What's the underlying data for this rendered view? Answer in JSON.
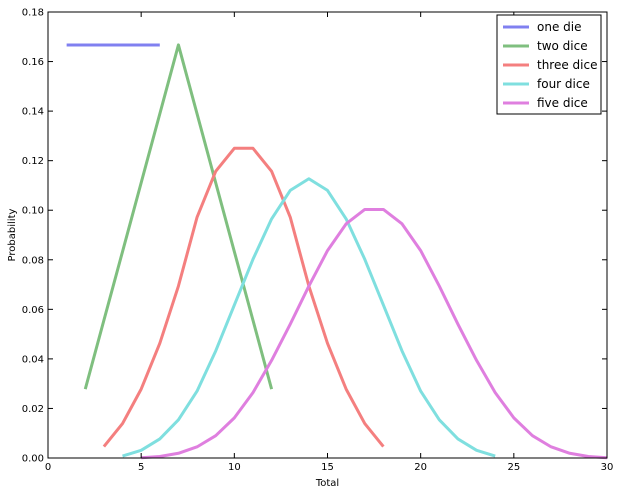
{
  "chart_data": {
    "type": "line",
    "title": "",
    "xlabel": "Total",
    "ylabel": "Probability",
    "xlim": [
      0,
      30
    ],
    "ylim": [
      0,
      0.18
    ],
    "xticks": [
      0,
      5,
      10,
      15,
      20,
      25,
      30
    ],
    "yticks": [
      0.0,
      0.02,
      0.04,
      0.06,
      0.08,
      0.1,
      0.12,
      0.14,
      0.16,
      0.18
    ],
    "grid": false,
    "legend_position": "top-right",
    "series": [
      {
        "name": "one die",
        "color": "#8080f0",
        "x": [
          1,
          2,
          3,
          4,
          5,
          6
        ],
        "y": [
          0.1667,
          0.1667,
          0.1667,
          0.1667,
          0.1667,
          0.1667
        ]
      },
      {
        "name": "two dice",
        "color": "#7fbf7f",
        "x": [
          2,
          3,
          4,
          5,
          6,
          7,
          8,
          9,
          10,
          11,
          12
        ],
        "y": [
          0.0278,
          0.0556,
          0.0833,
          0.1111,
          0.1389,
          0.1667,
          0.1389,
          0.1111,
          0.0833,
          0.0556,
          0.0278
        ]
      },
      {
        "name": "three dice",
        "color": "#f47f7f",
        "x": [
          3,
          4,
          5,
          6,
          7,
          8,
          9,
          10,
          11,
          12,
          13,
          14,
          15,
          16,
          17,
          18
        ],
        "y": [
          0.0046,
          0.0139,
          0.0278,
          0.0463,
          0.0694,
          0.0972,
          0.1157,
          0.125,
          0.125,
          0.1157,
          0.0972,
          0.0694,
          0.0463,
          0.0278,
          0.0139,
          0.0046
        ]
      },
      {
        "name": "four dice",
        "color": "#7fdfdf",
        "x": [
          4,
          5,
          6,
          7,
          8,
          9,
          10,
          11,
          12,
          13,
          14,
          15,
          16,
          17,
          18,
          19,
          20,
          21,
          22,
          23,
          24
        ],
        "y": [
          0.0008,
          0.0031,
          0.0077,
          0.0154,
          0.027,
          0.0432,
          0.0617,
          0.0802,
          0.0965,
          0.108,
          0.1127,
          0.108,
          0.0965,
          0.0802,
          0.0617,
          0.0432,
          0.027,
          0.0154,
          0.0077,
          0.0031,
          0.0008
        ]
      },
      {
        "name": "five dice",
        "color": "#df7fdf",
        "x": [
          5,
          6,
          7,
          8,
          9,
          10,
          11,
          12,
          13,
          14,
          15,
          16,
          17,
          18,
          19,
          20,
          21,
          22,
          23,
          24,
          25,
          26,
          27,
          28,
          29,
          30
        ],
        "y": [
          0.0001,
          0.0006,
          0.0019,
          0.0045,
          0.009,
          0.0162,
          0.0264,
          0.0394,
          0.054,
          0.0694,
          0.0837,
          0.0945,
          0.1003,
          0.1003,
          0.0945,
          0.0837,
          0.0694,
          0.054,
          0.0394,
          0.0264,
          0.0162,
          0.009,
          0.0045,
          0.0019,
          0.0006,
          0.0001
        ]
      }
    ]
  }
}
